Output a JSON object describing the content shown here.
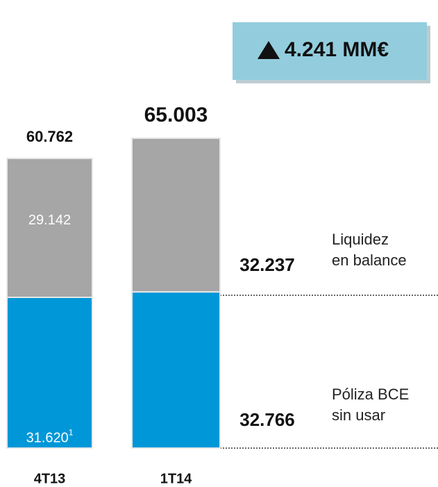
{
  "chart_data": {
    "type": "stacked_bar",
    "categories": [
      "4T13",
      "1T14"
    ],
    "series": [
      {
        "name": "Póliza BCE sin usar",
        "color": "#0097d8",
        "values": [
          31.62,
          32.766
        ],
        "value_labels": [
          "31.620",
          "32.766"
        ]
      },
      {
        "name": "Liquidez en balance",
        "color": "#a6a6a6",
        "values": [
          29.142,
          32.237
        ],
        "value_labels": [
          "29.142",
          "32.237"
        ]
      }
    ],
    "totals": [
      60.762,
      65.003
    ],
    "footnote": "1",
    "annotation": "4.241 MM€"
  }
}
